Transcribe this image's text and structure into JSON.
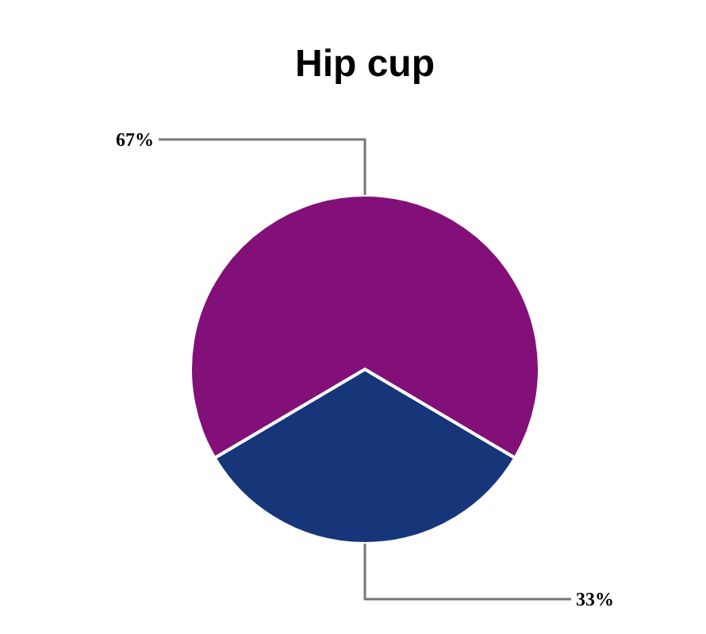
{
  "chart_data": {
    "type": "pie",
    "title": "Hip cup",
    "categories": [
      null,
      null
    ],
    "values": [
      67,
      33
    ],
    "colors": [
      "#831078",
      "#17367a"
    ],
    "value_labels": [
      "67%",
      "33%"
    ]
  }
}
